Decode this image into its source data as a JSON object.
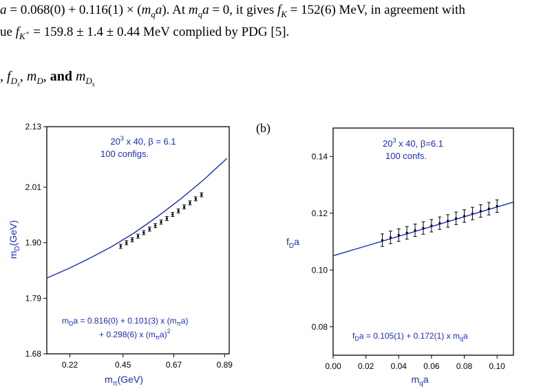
{
  "text": {
    "line1": "a = 0.068(0) + 0.116(1) × (m_q a). At m_q a = 0, it gives f_K = 152(6) MeV, in agreement with",
    "line2": "ue f_{K+} = 159.8 ± 1.4 ± 0.44 MeV complied by PDG [5].",
    "heading": ", f_{Ds}, m_D, and m_{Ds}",
    "panel_b_label": "(b)"
  },
  "chart_data": [
    {
      "type": "scatter",
      "panel": "a",
      "xlabel": "m_π(GeV)",
      "ylabel": "m_D(GeV)",
      "xlim": [
        0.12,
        0.91
      ],
      "ylim": [
        1.68,
        2.13
      ],
      "xticks": [
        0.22,
        0.45,
        0.67,
        0.89
      ],
      "yticks": [
        1.68,
        1.79,
        1.9,
        2.01,
        2.13
      ],
      "annotation_top": [
        "20^3 x 40, β = 6.1",
        "100 configs."
      ],
      "annotation_fit": [
        "m_D a = 0.816(0) + 0.101(3) x (m_π a)",
        "+ 0.298(6) x (m_π a)^2"
      ],
      "fit": {
        "x": [
          0.12,
          0.22,
          0.3,
          0.4,
          0.5,
          0.6,
          0.7,
          0.8,
          0.9
        ],
        "y": [
          1.83,
          1.85,
          1.868,
          1.892,
          1.92,
          1.952,
          1.987,
          2.025,
          2.067
        ]
      },
      "points": [
        {
          "x": 0.44,
          "y": 1.893,
          "err": 0.004
        },
        {
          "x": 0.465,
          "y": 1.9,
          "err": 0.004
        },
        {
          "x": 0.49,
          "y": 1.906,
          "err": 0.004
        },
        {
          "x": 0.515,
          "y": 1.913,
          "err": 0.004
        },
        {
          "x": 0.54,
          "y": 1.92,
          "err": 0.004
        },
        {
          "x": 0.565,
          "y": 1.927,
          "err": 0.004
        },
        {
          "x": 0.59,
          "y": 1.934,
          "err": 0.004
        },
        {
          "x": 0.615,
          "y": 1.941,
          "err": 0.004
        },
        {
          "x": 0.64,
          "y": 1.948,
          "err": 0.004
        },
        {
          "x": 0.665,
          "y": 1.956,
          "err": 0.004
        },
        {
          "x": 0.69,
          "y": 1.963,
          "err": 0.004
        },
        {
          "x": 0.715,
          "y": 1.971,
          "err": 0.004
        },
        {
          "x": 0.74,
          "y": 1.979,
          "err": 0.004
        },
        {
          "x": 0.765,
          "y": 1.987,
          "err": 0.004
        },
        {
          "x": 0.79,
          "y": 1.995,
          "err": 0.004
        }
      ]
    },
    {
      "type": "scatter",
      "panel": "b",
      "xlabel": "m_q a",
      "ylabel": "f_D a",
      "xlim": [
        0.0,
        0.11
      ],
      "ylim": [
        0.07,
        0.15
      ],
      "xticks": [
        0.0,
        0.02,
        0.04,
        0.06,
        0.08,
        0.1
      ],
      "yticks": [
        0.08,
        0.1,
        0.12,
        0.14
      ],
      "annotation_top": [
        "20^3 x 40, β=6.1",
        "100 confs."
      ],
      "annotation_fit": [
        "f_D a = 0.105(1) + 0.172(1) x m_q a"
      ],
      "fit": {
        "intercept": 0.105,
        "slope": 0.172,
        "x": [
          0.0,
          0.11
        ]
      },
      "points": [
        {
          "x": 0.03,
          "y": 0.1105,
          "err": 0.0022
        },
        {
          "x": 0.035,
          "y": 0.1115,
          "err": 0.0022
        },
        {
          "x": 0.04,
          "y": 0.1123,
          "err": 0.0022
        },
        {
          "x": 0.045,
          "y": 0.1131,
          "err": 0.0022
        },
        {
          "x": 0.05,
          "y": 0.114,
          "err": 0.0022
        },
        {
          "x": 0.055,
          "y": 0.1148,
          "err": 0.0022
        },
        {
          "x": 0.06,
          "y": 0.1156,
          "err": 0.0022
        },
        {
          "x": 0.065,
          "y": 0.1165,
          "err": 0.0022
        },
        {
          "x": 0.07,
          "y": 0.1173,
          "err": 0.0022
        },
        {
          "x": 0.075,
          "y": 0.1182,
          "err": 0.0022
        },
        {
          "x": 0.08,
          "y": 0.119,
          "err": 0.0022
        },
        {
          "x": 0.085,
          "y": 0.1199,
          "err": 0.0022
        },
        {
          "x": 0.09,
          "y": 0.1208,
          "err": 0.0022
        },
        {
          "x": 0.095,
          "y": 0.1216,
          "err": 0.0022
        },
        {
          "x": 0.1,
          "y": 0.1225,
          "err": 0.0022
        }
      ]
    }
  ]
}
